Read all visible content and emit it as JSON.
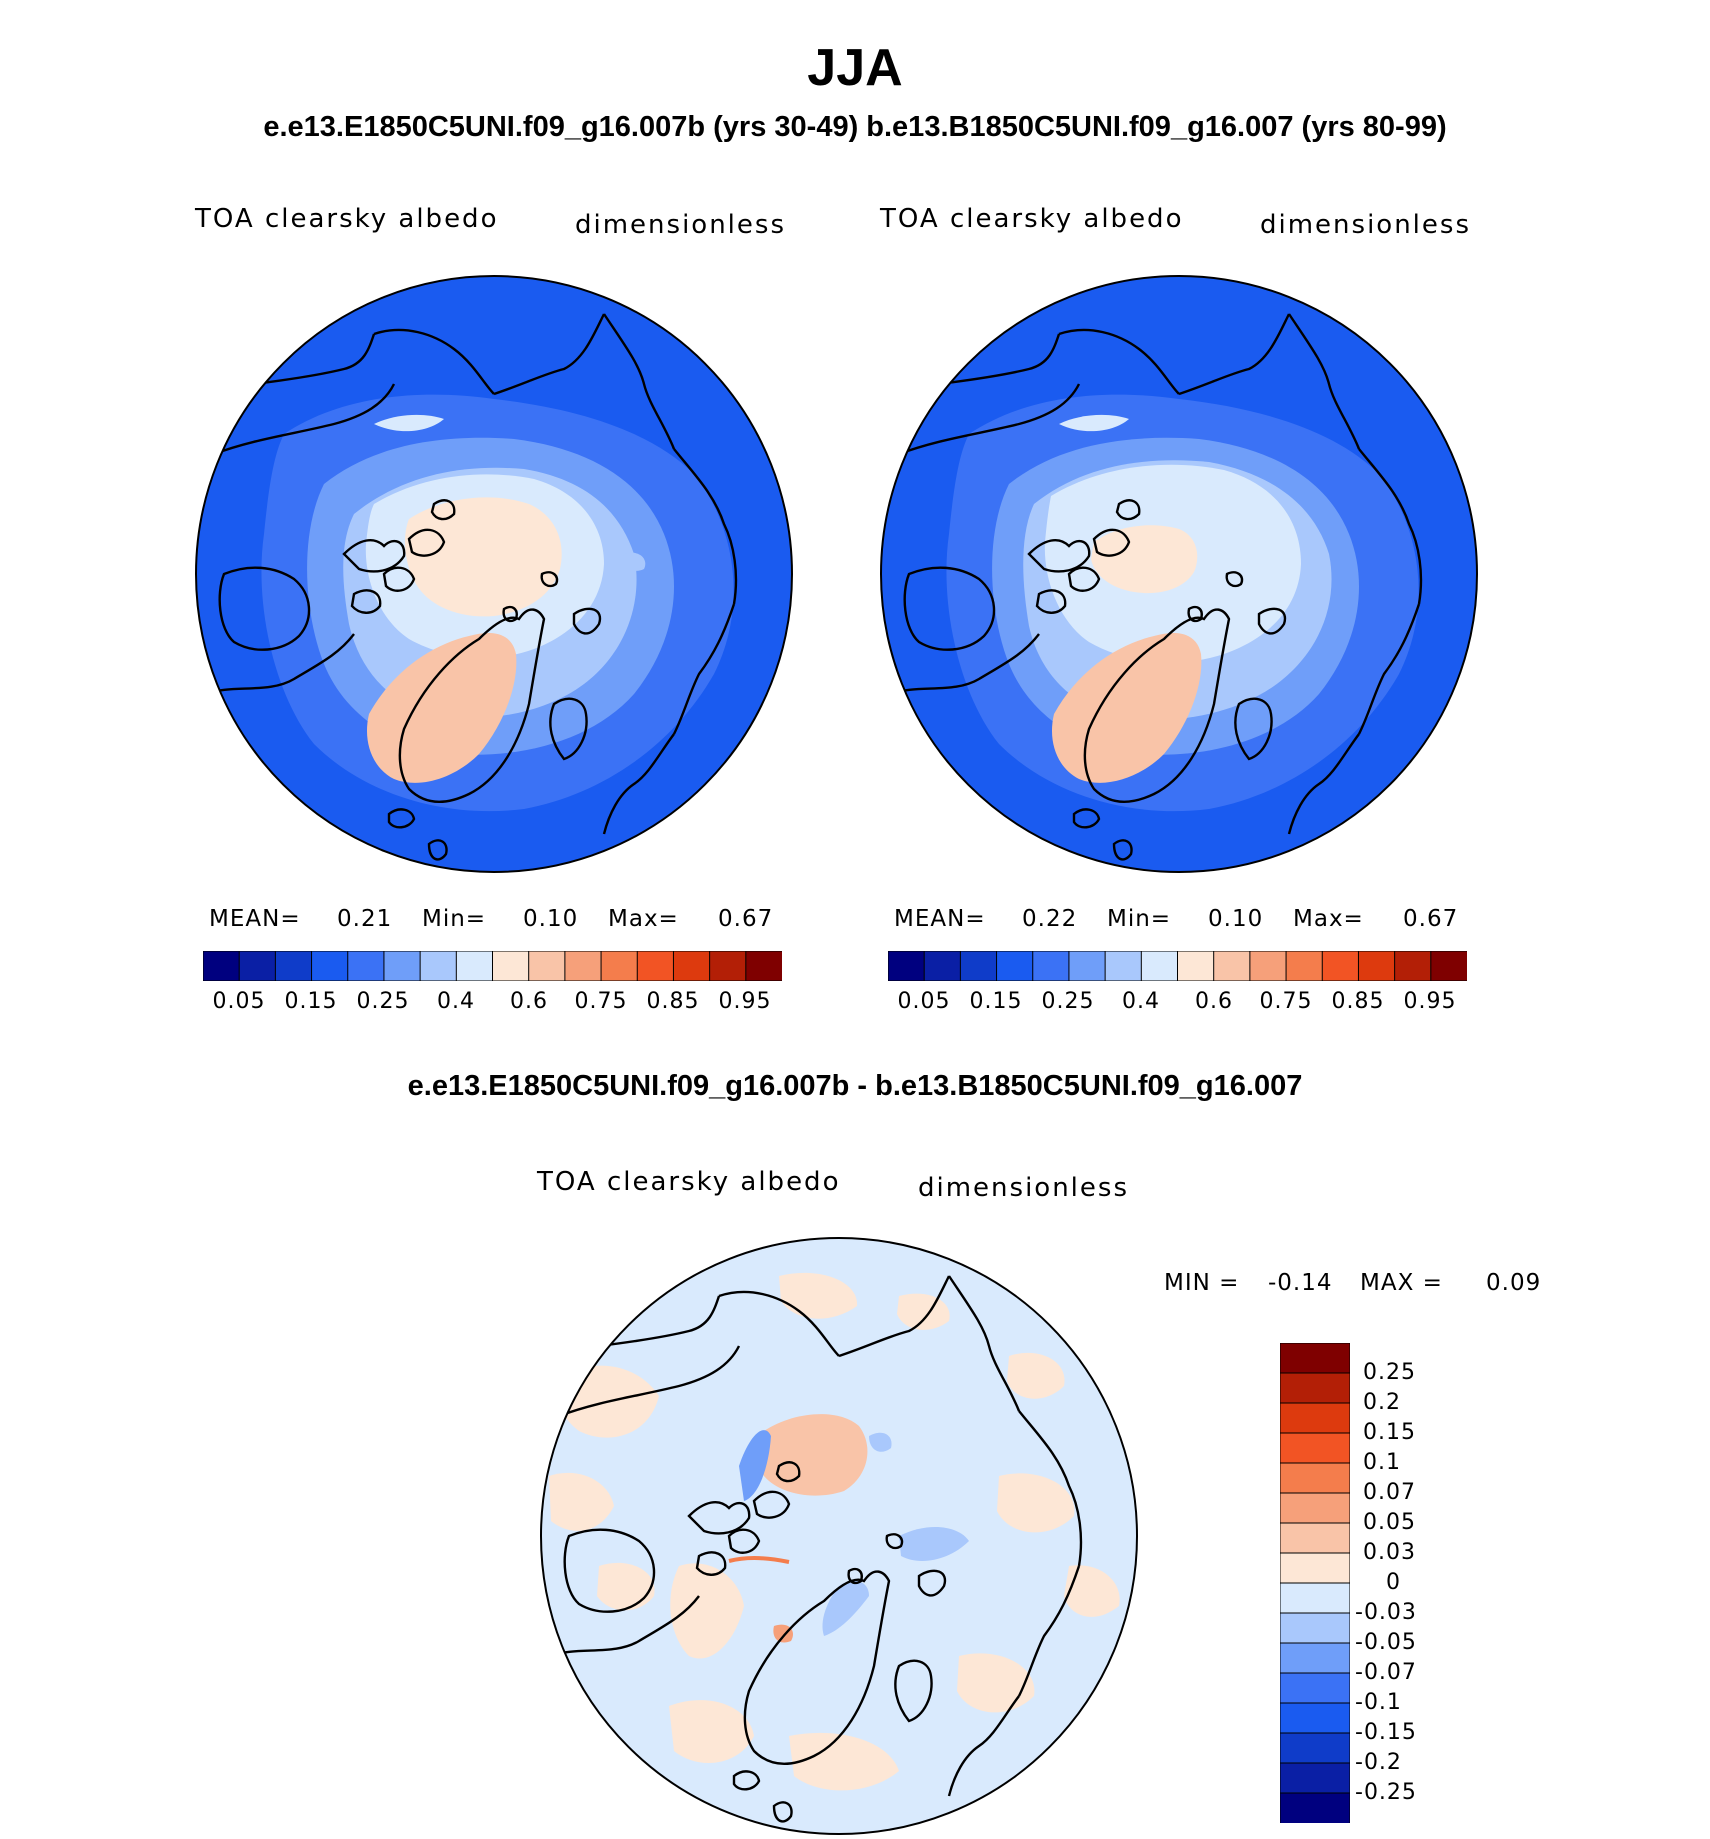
{
  "figure": {
    "season": "JJA",
    "comparison_title": "e.e13.E1850C5UNI.f09_g16.007b (yrs 30-49)  b.e13.B1850C5UNI.f09_g16.007 (yrs 80-99)",
    "difference_title": "e.e13.E1850C5UNI.f09_g16.007b - b.e13.B1850C5UNI.f09_g16.007"
  },
  "panels": [
    {
      "variable": "TOA clearsky albedo",
      "units": "dimensionless",
      "mean_label": "MEAN=",
      "mean_value": "0.21",
      "min_label": "Min=",
      "min_value": "0.10",
      "max_label": "Max=",
      "max_value": "0.67"
    },
    {
      "variable": "TOA clearsky albedo",
      "units": "dimensionless",
      "mean_label": "MEAN=",
      "mean_value": "0.22",
      "min_label": "Min=",
      "min_value": "0.10",
      "max_label": "Max=",
      "max_value": "0.67"
    }
  ],
  "colorbar": {
    "colors": [
      "#00007f",
      "#0a1fa5",
      "#0f3cc9",
      "#1a5bf0",
      "#3b72f5",
      "#6f9ef9",
      "#a9c8fc",
      "#d9eafd",
      "#fde7d6",
      "#f9c4a8",
      "#f6a07a",
      "#f47d4c",
      "#f25424",
      "#dd3a0e",
      "#b31f06",
      "#7f0000"
    ],
    "tick_labels": [
      "0.05",
      "0.15",
      "0.25",
      "0.4",
      "0.6",
      "0.75",
      "0.85",
      "0.95"
    ]
  },
  "difference": {
    "variable": "TOA clearsky albedo",
    "units": "dimensionless",
    "min_label": "MIN =",
    "min_value": "-0.14",
    "max_label": "MAX =",
    "max_value": "0.09",
    "colors": [
      "#7f0000",
      "#b31f06",
      "#dd3a0e",
      "#f25424",
      "#f47d4c",
      "#f6a07a",
      "#f9c4a8",
      "#fde7d6",
      "#d9eafd",
      "#a9c8fc",
      "#6f9ef9",
      "#3b72f5",
      "#1a5bf0",
      "#0f3cc9",
      "#0a1fa5",
      "#00007f"
    ],
    "tick_labels": [
      "0.25",
      "0.2",
      "0.15",
      "0.1",
      "0.07",
      "0.05",
      "0.03",
      "0",
      "-0.03",
      "-0.05",
      "-0.07",
      "-0.1",
      "-0.15",
      "-0.2",
      "-0.25"
    ]
  }
}
